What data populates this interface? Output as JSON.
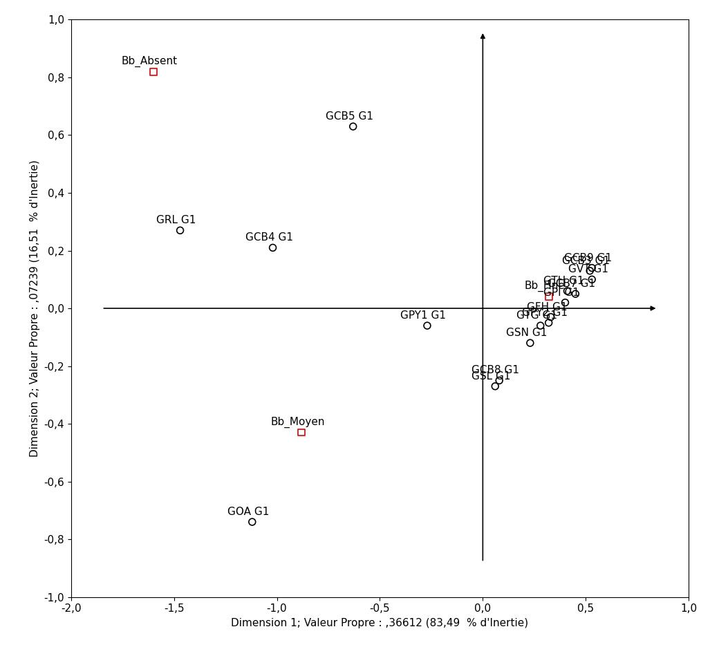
{
  "chart_data": {
    "type": "scatter",
    "x_label": "Dimension 1; Valeur Propre : ,36612 (83,49  % d'Inertie)",
    "y_label": "Dimension 2; Valeur Propre : ,07239 (16,51  % d'Inertie)",
    "xlim": [
      -2.0,
      1.0
    ],
    "ylim": [
      -1.0,
      1.0
    ],
    "xticks": [
      {
        "value": -2.0,
        "label": "-2,0"
      },
      {
        "value": -1.5,
        "label": "-1,5"
      },
      {
        "value": -1.0,
        "label": "-1,0"
      },
      {
        "value": -0.5,
        "label": "-0,5"
      },
      {
        "value": 0.0,
        "label": "0,0"
      },
      {
        "value": 0.5,
        "label": "0,5"
      },
      {
        "value": 1.0,
        "label": "1,0"
      }
    ],
    "yticks": [
      {
        "value": -1.0,
        "label": "-1,0"
      },
      {
        "value": -0.8,
        "label": "-0,8"
      },
      {
        "value": -0.6,
        "label": "-0,6"
      },
      {
        "value": -0.4,
        "label": "-0,4"
      },
      {
        "value": -0.2,
        "label": "-0,2"
      },
      {
        "value": 0.0,
        "label": "0,0"
      },
      {
        "value": 0.2,
        "label": "0,2"
      },
      {
        "value": 0.4,
        "label": "0,4"
      },
      {
        "value": 0.6,
        "label": "0,6"
      },
      {
        "value": 0.8,
        "label": "0,8"
      },
      {
        "value": 1.0,
        "label": "1,0"
      }
    ],
    "grid": false,
    "series": [
      {
        "color": "#e00000",
        "marker": "square",
        "labels": [
          "Bb_Absent",
          "Bb_Moyen",
          "Bb_Fine"
        ],
        "x": [
          -1.6,
          -0.88,
          0.32
        ],
        "values": [
          0.82,
          -0.43,
          0.04
        ]
      },
      {
        "color": "#000000",
        "marker": "circle",
        "labels": [
          "GCB5 G1",
          "GRL G1",
          "GCB4 G1",
          "GPY1 G1",
          "GOA G1",
          "GCB8 G1",
          "GSL G1",
          "GCB3 G1",
          "GCB9 G1",
          "GVT G1",
          "GCB7 G1",
          "GTH G1",
          "GPI G1",
          "GFH G1",
          "GPY2 G1",
          "GTG G1",
          "GSN G1"
        ],
        "x": [
          -0.63,
          -1.47,
          -1.02,
          -0.27,
          -1.12,
          0.08,
          0.06,
          0.52,
          0.53,
          0.53,
          0.45,
          0.41,
          0.4,
          0.33,
          0.32,
          0.28,
          0.23
        ],
        "values": [
          0.63,
          0.27,
          0.21,
          -0.06,
          -0.74,
          -0.25,
          -0.27,
          0.13,
          0.14,
          0.1,
          0.05,
          0.06,
          0.02,
          -0.03,
          -0.05,
          -0.06,
          -0.12
        ]
      }
    ]
  }
}
